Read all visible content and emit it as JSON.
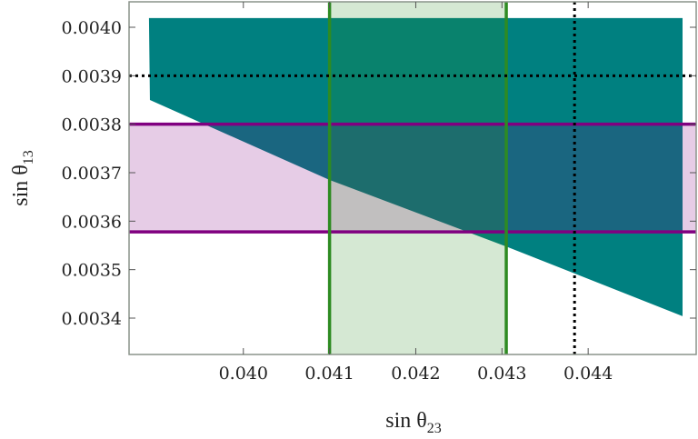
{
  "chart_data": {
    "type": "region",
    "x_label": "sin θ",
    "x_label_sub": "23",
    "y_label": "sin θ",
    "y_label_sub": "13",
    "xlim": [
      0.038674,
      0.045253
    ],
    "ylim": [
      0.003325,
      0.0040525
    ],
    "xticks": [
      {
        "value": 0.04,
        "label": "0.040"
      },
      0.041,
      0.042,
      0.043,
      0.044
    ],
    "yticks": [
      0.0034,
      0.0035,
      0.0036,
      0.0037,
      0.0038,
      0.0039,
      {
        "value": 0.004,
        "label": "0.0040"
      }
    ],
    "region": {
      "color": "#008080",
      "x": [
        0.038905,
        0.045095,
        0.045095,
        0.043074,
        0.041,
        0.038916
      ],
      "y": [
        0.004019,
        0.004019,
        0.003404,
        0.003546,
        0.003685,
        0.00385
      ]
    },
    "x_band": {
      "color": "#2e8b22",
      "values": [
        0.041,
        0.04305
      ]
    },
    "y_band": {
      "color": "#800080",
      "values": [
        0.003578,
        0.0038
      ]
    },
    "x_marker": 0.043842,
    "y_marker": 0.0039
  }
}
